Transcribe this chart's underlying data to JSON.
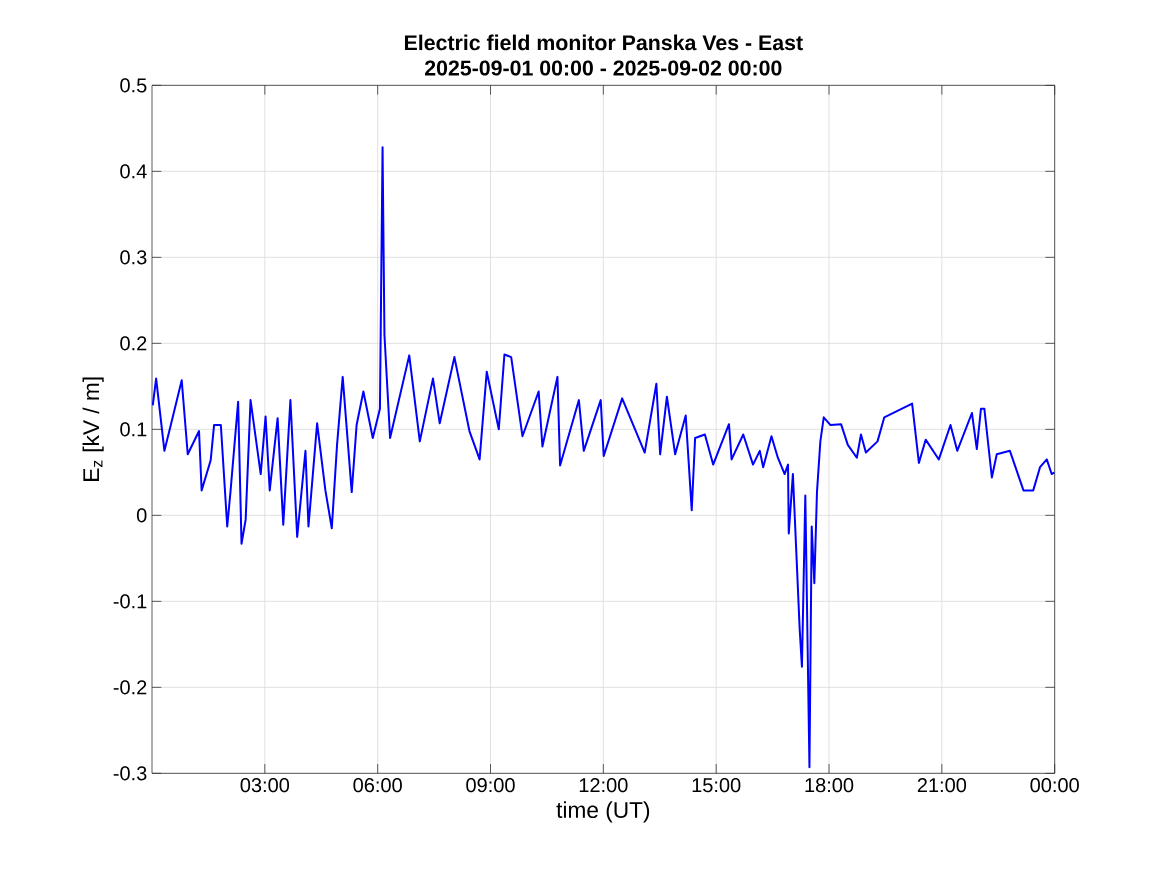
{
  "chart_data": {
    "type": "line",
    "title": "Electric field monitor Panska Ves - East",
    "subtitle": "2025-09-01 00:00 - 2025-09-02 00:00",
    "xlabel": "time (UT)",
    "ylabel": "E$_{z}$ [kV / m]",
    "xlim": [
      0,
      24
    ],
    "xticks": [
      {
        "value": 3,
        "label": "03:00"
      },
      {
        "value": 6,
        "label": "06:00"
      },
      {
        "value": 9,
        "label": "09:00"
      },
      {
        "value": 12,
        "label": "12:00"
      },
      {
        "value": 15,
        "label": "15:00"
      },
      {
        "value": 18,
        "label": "18:00"
      },
      {
        "value": 21,
        "label": "21:00"
      },
      {
        "value": 24,
        "label": "00:00"
      }
    ],
    "ylim": [
      -0.3,
      0.5
    ],
    "yticks": [
      -0.3,
      -0.2,
      -0.1,
      0,
      0.1,
      0.2,
      0.3,
      0.4,
      0.5
    ],
    "grid": true,
    "x": [
      0.02,
      0.11,
      0.33,
      0.5,
      0.79,
      0.95,
      1.25,
      1.32,
      1.56,
      1.65,
      1.83,
      2.0,
      2.09,
      2.29,
      2.38,
      2.49,
      2.62,
      2.89,
      3.02,
      3.13,
      3.34,
      3.49,
      3.68,
      3.86,
      4.08,
      4.16,
      4.39,
      4.61,
      4.78,
      4.92,
      5.07,
      5.31,
      5.44,
      5.62,
      5.87,
      6.06,
      6.13,
      6.18,
      6.33,
      6.84,
      7.12,
      7.47,
      7.65,
      8.04,
      8.44,
      8.71,
      8.9,
      9.22,
      9.37,
      9.55,
      9.85,
      10.28,
      10.38,
      10.78,
      10.85,
      11.35,
      11.48,
      11.93,
      12.01,
      12.5,
      13.1,
      13.41,
      13.51,
      13.69,
      13.91,
      14.19,
      14.35,
      14.44,
      14.7,
      14.92,
      15.34,
      15.41,
      15.72,
      15.98,
      16.16,
      16.25,
      16.47,
      16.64,
      16.82,
      16.91,
      16.93,
      17.04,
      17.22,
      17.28,
      17.37,
      17.48,
      17.54,
      17.61,
      17.68,
      17.77,
      17.86,
      18.04,
      18.32,
      18.5,
      18.74,
      18.85,
      18.98,
      19.29,
      19.47,
      20.21,
      20.39,
      20.57,
      20.92,
      21.23,
      21.41,
      21.8,
      21.93,
      22.04,
      22.13,
      22.33,
      22.46,
      22.81,
      22.99,
      23.17,
      23.43,
      23.61,
      23.79,
      23.92,
      24
    ],
    "series": [
      {
        "color": "#0000ff",
        "values": [
          0.128,
          0.159,
          0.075,
          0.105,
          0.157,
          0.071,
          0.098,
          0.029,
          0.064,
          0.105,
          0.105,
          -0.013,
          0.029,
          0.132,
          -0.033,
          -0.005,
          0.134,
          0.048,
          0.115,
          0.029,
          0.113,
          -0.011,
          0.134,
          -0.025,
          0.075,
          -0.013,
          0.107,
          0.029,
          -0.015,
          0.082,
          0.161,
          0.027,
          0.105,
          0.144,
          0.09,
          0.124,
          0.428,
          0.21,
          0.09,
          0.186,
          0.086,
          0.159,
          0.107,
          0.184,
          0.098,
          0.065,
          0.167,
          0.1,
          0.187,
          0.184,
          0.092,
          0.144,
          0.08,
          0.161,
          0.058,
          0.134,
          0.075,
          0.134,
          0.069,
          0.136,
          0.073,
          0.153,
          0.071,
          0.138,
          0.071,
          0.116,
          0.006,
          0.09,
          0.094,
          0.059,
          0.106,
          0.065,
          0.094,
          0.059,
          0.075,
          0.056,
          0.092,
          0.067,
          0.048,
          0.059,
          -0.021,
          0.048,
          -0.132,
          -0.176,
          0.023,
          -0.293,
          -0.013,
          -0.079,
          0.027,
          0.086,
          0.114,
          0.105,
          0.106,
          0.082,
          0.067,
          0.094,
          0.073,
          0.086,
          0.114,
          0.13,
          0.061,
          0.088,
          0.065,
          0.105,
          0.075,
          0.119,
          0.077,
          0.124,
          0.124,
          0.044,
          0.071,
          0.075,
          0.052,
          0.029,
          0.029,
          0.056,
          0.065,
          0.048,
          0.05
        ]
      }
    ]
  }
}
